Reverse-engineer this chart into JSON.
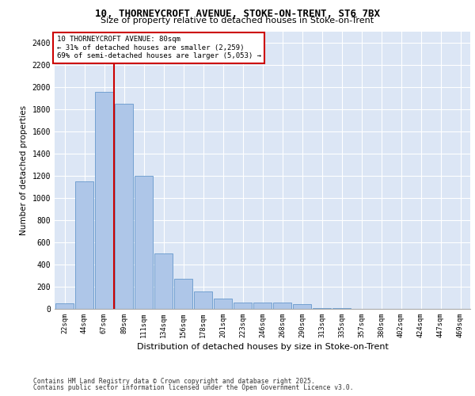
{
  "title1": "10, THORNEYCROFT AVENUE, STOKE-ON-TRENT, ST6 7BX",
  "title2": "Size of property relative to detached houses in Stoke-on-Trent",
  "xlabel": "Distribution of detached houses by size in Stoke-on-Trent",
  "ylabel": "Number of detached properties",
  "categories": [
    "22sqm",
    "44sqm",
    "67sqm",
    "89sqm",
    "111sqm",
    "134sqm",
    "156sqm",
    "178sqm",
    "201sqm",
    "223sqm",
    "246sqm",
    "268sqm",
    "290sqm",
    "313sqm",
    "335sqm",
    "357sqm",
    "380sqm",
    "402sqm",
    "424sqm",
    "447sqm",
    "469sqm"
  ],
  "values": [
    50,
    1150,
    1960,
    1850,
    1200,
    500,
    270,
    160,
    90,
    55,
    60,
    55,
    40,
    10,
    5,
    3,
    2,
    1,
    0,
    0,
    0
  ],
  "bar_color": "#aec6e8",
  "bar_edge_color": "#6699cc",
  "bg_color": "#dce6f5",
  "grid_color": "#ffffff",
  "vline_color": "#cc0000",
  "vline_pos": 2.5,
  "annotation_box_text": "10 THORNEYCROFT AVENUE: 80sqm\n← 31% of detached houses are smaller (2,259)\n69% of semi-detached houses are larger (5,053) →",
  "annotation_box_edgecolor": "#cc0000",
  "footer1": "Contains HM Land Registry data © Crown copyright and database right 2025.",
  "footer2": "Contains public sector information licensed under the Open Government Licence v3.0.",
  "ylim": [
    0,
    2500
  ],
  "yticks": [
    0,
    200,
    400,
    600,
    800,
    1000,
    1200,
    1400,
    1600,
    1800,
    2000,
    2200,
    2400
  ]
}
